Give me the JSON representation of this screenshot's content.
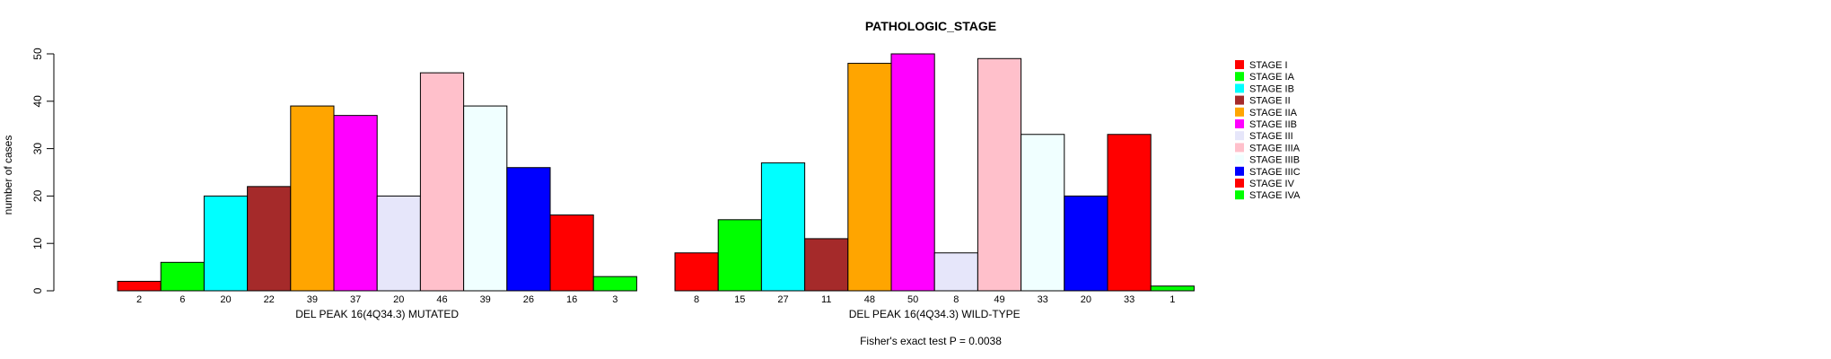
{
  "chart_data": {
    "type": "bar",
    "title": "PATHOLOGIC_STAGE",
    "ylabel": "number of cases",
    "ylim": [
      0,
      50
    ],
    "yticks": [
      0,
      10,
      20,
      30,
      40,
      50
    ],
    "footnote": "Fisher's exact test P = 0.0038",
    "categories": [
      "STAGE I",
      "STAGE IA",
      "STAGE IB",
      "STAGE II",
      "STAGE IIA",
      "STAGE IIB",
      "STAGE III",
      "STAGE IIIA",
      "STAGE IIIB",
      "STAGE IIIC",
      "STAGE IV",
      "STAGE IVA"
    ],
    "colors": [
      "#ff0000",
      "#00ff00",
      "#00ffff",
      "#a52a2a",
      "#ffa500",
      "#ff00ff",
      "#e6e6fa",
      "#ffc0cb",
      "#f0ffff",
      "#0000ff",
      "#ff0000",
      "#00ff00"
    ],
    "legend": [
      "STAGE I",
      "STAGE IA",
      "STAGE IB",
      "STAGE II",
      "STAGE IIA",
      "STAGE IIB",
      "STAGE III",
      "STAGE IIIA",
      "STAGE IIIB",
      "STAGE IIIC",
      "STAGE IV",
      "STAGE IVA"
    ],
    "legend_position": "right",
    "panels": [
      {
        "xlabel": "DEL PEAK 16(4Q34.3) MUTATED",
        "values": [
          2,
          6,
          20,
          22,
          39,
          37,
          20,
          46,
          39,
          26,
          16,
          3
        ]
      },
      {
        "xlabel": "DEL PEAK 16(4Q34.3) WILD-TYPE",
        "values": [
          8,
          15,
          27,
          11,
          48,
          50,
          8,
          49,
          33,
          20,
          33,
          1
        ]
      }
    ]
  }
}
